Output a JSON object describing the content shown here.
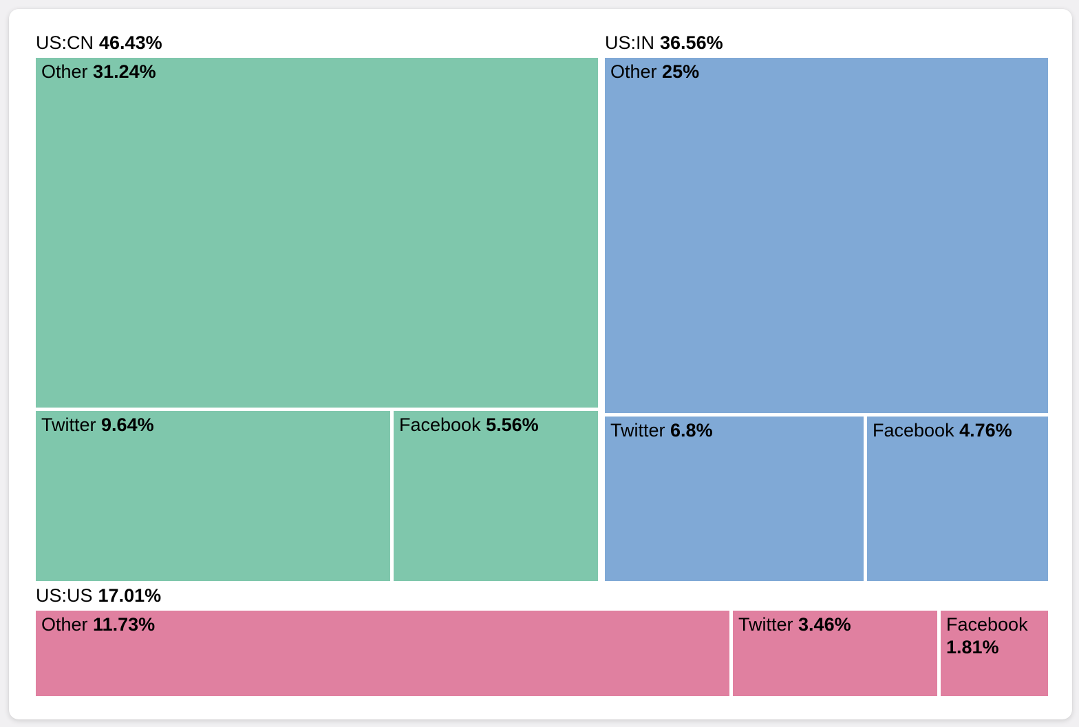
{
  "colors": {
    "page_background": "#f1f0f2",
    "card_background": "#ffffff",
    "text": "#000000",
    "cell_gap": "#ffffff"
  },
  "chart_data": {
    "type": "treemap",
    "unit": "%",
    "legend_position": "none",
    "layout": "two groups on top row sized by value, third group full-width bottom row; Other cell on top of each group, Twitter and Facebook side by side below",
    "groups": [
      {
        "label": "US:CN",
        "value": 46.43,
        "value_label": "46.43%",
        "color": "#7fc7ac",
        "children": [
          {
            "label": "Other",
            "value": 31.24,
            "value_label": "31.24%"
          },
          {
            "label": "Twitter",
            "value": 9.64,
            "value_label": "9.64%"
          },
          {
            "label": "Facebook",
            "value": 5.56,
            "value_label": "5.56%"
          }
        ]
      },
      {
        "label": "US:IN",
        "value": 36.56,
        "value_label": "36.56%",
        "color": "#80a9d6",
        "children": [
          {
            "label": "Other",
            "value": 25,
            "value_label": "25%"
          },
          {
            "label": "Twitter",
            "value": 6.8,
            "value_label": "6.8%"
          },
          {
            "label": "Facebook",
            "value": 4.76,
            "value_label": "4.76%"
          }
        ]
      },
      {
        "label": "US:US",
        "value": 17.01,
        "value_label": "17.01%",
        "color": "#e080a0",
        "children": [
          {
            "label": "Other",
            "value": 11.73,
            "value_label": "11.73%"
          },
          {
            "label": "Twitter",
            "value": 3.46,
            "value_label": "3.46%"
          },
          {
            "label": "Facebook",
            "value": 1.81,
            "value_label": "1.81%"
          }
        ]
      }
    ]
  }
}
